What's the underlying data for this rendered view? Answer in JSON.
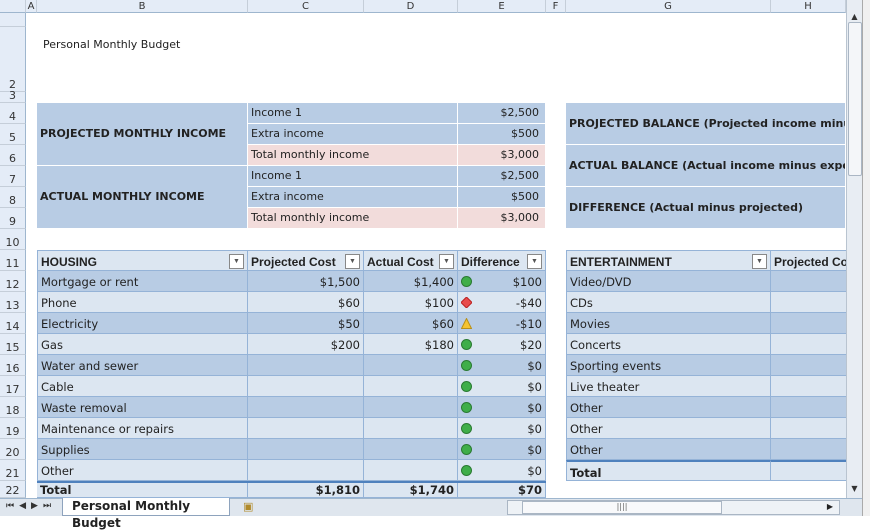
{
  "columns": [
    "A",
    "B",
    "C",
    "D",
    "E",
    "F",
    "G",
    "H"
  ],
  "title": "Personal Monthly Budget",
  "income": {
    "projected_label": "PROJECTED MONTHLY INCOME",
    "actual_label": "ACTUAL MONTHLY INCOME",
    "projected": [
      {
        "label": "Income 1",
        "value": "$2,500"
      },
      {
        "label": "Extra income",
        "value": "$500"
      },
      {
        "label": "Total monthly income",
        "value": "$3,000"
      }
    ],
    "actual": [
      {
        "label": "Income 1",
        "value": "$2,500"
      },
      {
        "label": "Extra income",
        "value": "$500"
      },
      {
        "label": "Total monthly income",
        "value": "$3,000"
      }
    ]
  },
  "balance": [
    "PROJECTED BALANCE (Projected income minus expenses)",
    "ACTUAL BALANCE (Actual income minus expenses)",
    "DIFFERENCE (Actual minus projected)"
  ],
  "housing": {
    "headers": [
      "HOUSING",
      "Projected Cost",
      "Actual Cost",
      "Difference"
    ],
    "rows": [
      {
        "item": "Mortgage or rent",
        "projected": "$1,500",
        "actual": "$1,400",
        "status": "green-circle",
        "diff": "$100"
      },
      {
        "item": "Phone",
        "projected": "$60",
        "actual": "$100",
        "status": "red-diamond",
        "diff": "-$40"
      },
      {
        "item": "Electricity",
        "projected": "$50",
        "actual": "$60",
        "status": "yellow-triangle",
        "diff": "-$10"
      },
      {
        "item": "Gas",
        "projected": "$200",
        "actual": "$180",
        "status": "green-circle",
        "diff": "$20"
      },
      {
        "item": "Water and sewer",
        "projected": "",
        "actual": "",
        "status": "green-circle",
        "diff": "$0"
      },
      {
        "item": "Cable",
        "projected": "",
        "actual": "",
        "status": "green-circle",
        "diff": "$0"
      },
      {
        "item": "Waste removal",
        "projected": "",
        "actual": "",
        "status": "green-circle",
        "diff": "$0"
      },
      {
        "item": "Maintenance or repairs",
        "projected": "",
        "actual": "",
        "status": "green-circle",
        "diff": "$0"
      },
      {
        "item": "Supplies",
        "projected": "",
        "actual": "",
        "status": "green-circle",
        "diff": "$0"
      },
      {
        "item": "Other",
        "projected": "",
        "actual": "",
        "status": "green-circle",
        "diff": "$0"
      }
    ],
    "total": {
      "item": "Total",
      "projected": "$1,810",
      "actual": "$1,740",
      "diff": "$70"
    }
  },
  "entertainment": {
    "headers": [
      "ENTERTAINMENT",
      "Projected Cost"
    ],
    "rows": [
      "Video/DVD",
      "CDs",
      "Movies",
      "Concerts",
      "Sporting events",
      "Live theater",
      "Other",
      "Other",
      "Other"
    ],
    "total": "Total"
  },
  "sheet_tab": "Personal Monthly Budget",
  "colors": {
    "header_blue": "#b8cce4",
    "light_blue": "#dce6f1",
    "total_pink": "#f2dcdb",
    "border": "#95b3d7"
  }
}
